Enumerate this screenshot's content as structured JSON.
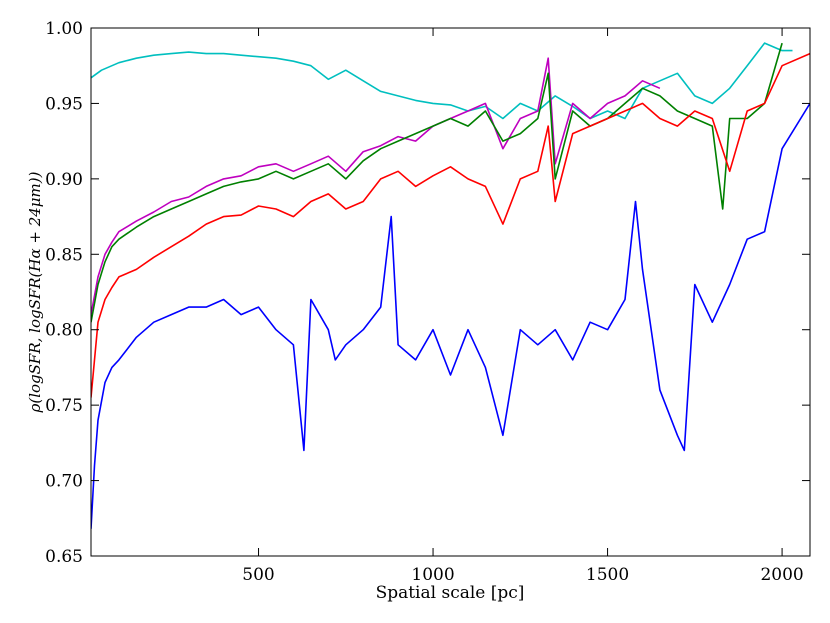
{
  "chart_data": {
    "type": "line",
    "title": "",
    "xlabel": "Spatial scale [pc]",
    "ylabel": "ρ(logSFR, logSFR(Hα + 24μm))",
    "xlim": [
      20,
      2080
    ],
    "ylim": [
      0.65,
      1.0
    ],
    "x_ticks": [
      500,
      1000,
      1500,
      2000
    ],
    "x_tick_labels": [
      "500",
      "1000",
      "1500",
      "2000"
    ],
    "y_ticks": [
      0.65,
      0.7,
      0.75,
      0.8,
      0.85,
      0.9,
      0.95,
      1.0
    ],
    "y_tick_labels": [
      "0.65",
      "0.70",
      "0.75",
      "0.80",
      "0.85",
      "0.90",
      "0.95",
      "1.00"
    ],
    "legend": "none",
    "series": [
      {
        "name": "cyan",
        "color": "#00bfbf",
        "x": [
          20,
          50,
          100,
          150,
          200,
          250,
          300,
          350,
          400,
          450,
          500,
          550,
          600,
          650,
          700,
          750,
          800,
          850,
          900,
          950,
          1000,
          1050,
          1100,
          1150,
          1200,
          1250,
          1300,
          1350,
          1400,
          1450,
          1500,
          1550,
          1600,
          1650,
          1700,
          1750,
          1800,
          1850,
          1900,
          1950,
          2000,
          2030
        ],
        "y": [
          0.967,
          0.972,
          0.977,
          0.98,
          0.982,
          0.983,
          0.984,
          0.983,
          0.983,
          0.982,
          0.981,
          0.98,
          0.978,
          0.975,
          0.966,
          0.972,
          0.965,
          0.958,
          0.955,
          0.952,
          0.95,
          0.949,
          0.945,
          0.948,
          0.94,
          0.95,
          0.945,
          0.955,
          0.948,
          0.94,
          0.945,
          0.94,
          0.96,
          0.965,
          0.97,
          0.955,
          0.95,
          0.96,
          0.975,
          0.99,
          0.985,
          0.985
        ]
      },
      {
        "name": "magenta",
        "color": "#bf00bf",
        "x": [
          20,
          40,
          60,
          80,
          100,
          150,
          200,
          250,
          300,
          350,
          400,
          450,
          500,
          550,
          600,
          650,
          700,
          750,
          800,
          850,
          900,
          950,
          1000,
          1050,
          1100,
          1150,
          1200,
          1250,
          1300,
          1330,
          1350,
          1400,
          1450,
          1500,
          1550,
          1600,
          1650
        ],
        "y": [
          0.81,
          0.835,
          0.85,
          0.858,
          0.865,
          0.872,
          0.878,
          0.885,
          0.888,
          0.895,
          0.9,
          0.902,
          0.908,
          0.91,
          0.905,
          0.91,
          0.915,
          0.905,
          0.918,
          0.922,
          0.928,
          0.925,
          0.935,
          0.94,
          0.945,
          0.95,
          0.92,
          0.94,
          0.945,
          0.98,
          0.91,
          0.95,
          0.94,
          0.95,
          0.955,
          0.965,
          0.96
        ]
      },
      {
        "name": "green",
        "color": "#008000",
        "x": [
          20,
          40,
          60,
          80,
          100,
          150,
          200,
          250,
          300,
          350,
          400,
          450,
          500,
          550,
          600,
          650,
          700,
          750,
          800,
          850,
          900,
          950,
          1000,
          1050,
          1100,
          1150,
          1200,
          1250,
          1300,
          1330,
          1350,
          1400,
          1450,
          1500,
          1550,
          1600,
          1650,
          1700,
          1750,
          1800,
          1830,
          1850,
          1900,
          1950,
          2000
        ],
        "y": [
          0.805,
          0.83,
          0.845,
          0.855,
          0.86,
          0.868,
          0.875,
          0.88,
          0.885,
          0.89,
          0.895,
          0.898,
          0.9,
          0.905,
          0.9,
          0.905,
          0.91,
          0.9,
          0.912,
          0.92,
          0.925,
          0.93,
          0.935,
          0.94,
          0.935,
          0.945,
          0.925,
          0.93,
          0.94,
          0.97,
          0.9,
          0.945,
          0.935,
          0.94,
          0.95,
          0.96,
          0.955,
          0.945,
          0.94,
          0.935,
          0.88,
          0.94,
          0.94,
          0.95,
          0.99
        ]
      },
      {
        "name": "red",
        "color": "#ff0000",
        "x": [
          20,
          40,
          60,
          80,
          100,
          150,
          200,
          250,
          300,
          350,
          400,
          450,
          500,
          550,
          600,
          650,
          700,
          750,
          800,
          850,
          900,
          950,
          1000,
          1050,
          1100,
          1150,
          1200,
          1250,
          1300,
          1330,
          1350,
          1400,
          1450,
          1500,
          1550,
          1600,
          1650,
          1700,
          1750,
          1800,
          1850,
          1900,
          1950,
          2000,
          2080
        ],
        "y": [
          0.755,
          0.805,
          0.82,
          0.828,
          0.835,
          0.84,
          0.848,
          0.855,
          0.862,
          0.87,
          0.875,
          0.876,
          0.882,
          0.88,
          0.875,
          0.885,
          0.89,
          0.88,
          0.885,
          0.9,
          0.905,
          0.895,
          0.902,
          0.908,
          0.9,
          0.895,
          0.87,
          0.9,
          0.905,
          0.935,
          0.885,
          0.93,
          0.935,
          0.94,
          0.945,
          0.95,
          0.94,
          0.935,
          0.945,
          0.94,
          0.905,
          0.945,
          0.95,
          0.975,
          0.983
        ]
      },
      {
        "name": "blue",
        "color": "#0000ff",
        "x": [
          20,
          30,
          40,
          60,
          80,
          100,
          150,
          200,
          250,
          300,
          350,
          400,
          450,
          500,
          550,
          600,
          630,
          650,
          700,
          720,
          750,
          800,
          850,
          880,
          900,
          950,
          1000,
          1050,
          1100,
          1150,
          1200,
          1250,
          1300,
          1350,
          1400,
          1450,
          1500,
          1550,
          1580,
          1600,
          1650,
          1700,
          1720,
          1750,
          1800,
          1850,
          1900,
          1950,
          2000,
          2080
        ],
        "y": [
          0.668,
          0.71,
          0.74,
          0.765,
          0.775,
          0.78,
          0.795,
          0.805,
          0.81,
          0.815,
          0.815,
          0.82,
          0.81,
          0.815,
          0.8,
          0.79,
          0.72,
          0.82,
          0.8,
          0.78,
          0.79,
          0.8,
          0.815,
          0.875,
          0.79,
          0.78,
          0.8,
          0.77,
          0.8,
          0.775,
          0.73,
          0.8,
          0.79,
          0.8,
          0.78,
          0.805,
          0.8,
          0.82,
          0.885,
          0.84,
          0.76,
          0.73,
          0.72,
          0.83,
          0.805,
          0.83,
          0.86,
          0.865,
          0.92,
          0.95
        ]
      }
    ]
  }
}
